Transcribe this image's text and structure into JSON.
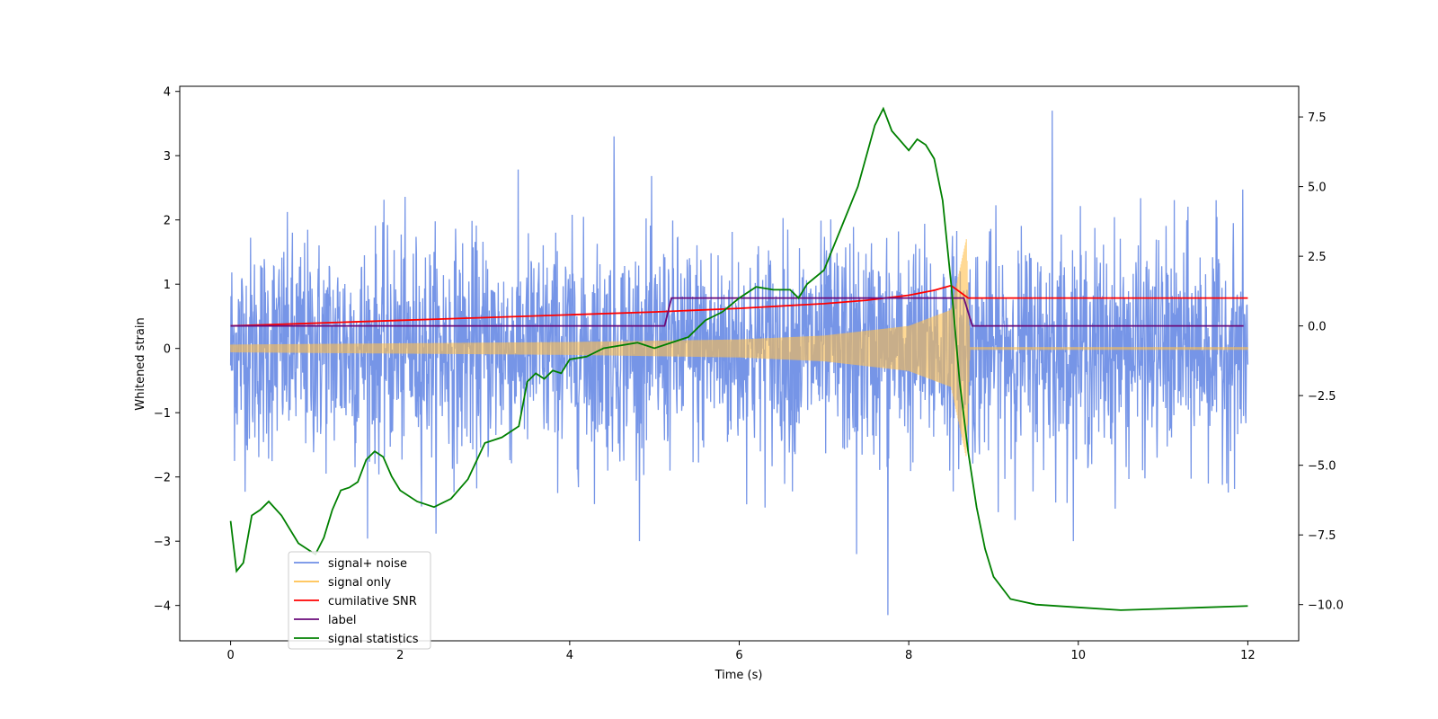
{
  "chart_data": {
    "type": "line",
    "xlabel": "Time (s)",
    "ylabel": "Whitened strain",
    "xlim": [
      -0.6,
      12.6
    ],
    "ylim": [
      -4.55,
      4.08
    ],
    "y2lim": [
      -11.3,
      8.6
    ],
    "x_ticks": [
      0,
      2,
      4,
      6,
      8,
      10,
      12
    ],
    "y_ticks": [
      4,
      3,
      2,
      1,
      0,
      -1,
      -2,
      -3,
      -4
    ],
    "y2_ticks": [
      7.5,
      5.0,
      2.5,
      0.0,
      -2.5,
      -5.0,
      -7.5,
      -10.0
    ],
    "x_tick_labels": [
      "0",
      "2",
      "4",
      "6",
      "8",
      "10",
      "12"
    ],
    "y_tick_labels": [
      "4",
      "3",
      "2",
      "1",
      "0",
      "−1",
      "−2",
      "−3",
      "−4"
    ],
    "y2_tick_labels": [
      "7.5",
      "5.0",
      "2.5",
      "0.0",
      "−2.5",
      "−5.0",
      "−7.5",
      "−10.0"
    ],
    "grid": false,
    "legend_position": "lower-left",
    "legend": [
      {
        "label": "signal+ noise",
        "color": "#6f8fe6"
      },
      {
        "label": "signal only",
        "color": "#ffc04d"
      },
      {
        "label": "cumilative SNR",
        "color": "#ff0000"
      },
      {
        "label": "label",
        "color": "#6a0a7a"
      },
      {
        "label": "signal statistics",
        "color": "#008000"
      }
    ],
    "series": [
      {
        "name": "signal+ noise",
        "axis": "left",
        "color": "#6f8fe6",
        "style": "noise",
        "x_range": [
          0,
          12
        ],
        "noise_sigma": 0.85,
        "approx_extremes": {
          "max": 3.7,
          "min": -4.15
        }
      },
      {
        "name": "signal only",
        "axis": "left",
        "color": "#ffc04d",
        "style": "chirp",
        "chirp_start": 0,
        "merger_time": 8.7,
        "envelope": [
          [
            0,
            0.06
          ],
          [
            2,
            0.08
          ],
          [
            4,
            0.1
          ],
          [
            6,
            0.14
          ],
          [
            7,
            0.2
          ],
          [
            8,
            0.35
          ],
          [
            8.5,
            0.6
          ],
          [
            8.68,
            1.7
          ],
          [
            8.72,
            0.02
          ],
          [
            12,
            0.02
          ]
        ]
      },
      {
        "name": "cumilative SNR",
        "axis": "right",
        "color": "#ff0000",
        "x": [
          0,
          1,
          2,
          3,
          4,
          5,
          6,
          7,
          7.5,
          8,
          8.3,
          8.5,
          8.7,
          8.72,
          9,
          10,
          11,
          12
        ],
        "y": [
          0.0,
          0.1,
          0.2,
          0.3,
          0.4,
          0.5,
          0.63,
          0.8,
          0.92,
          1.1,
          1.28,
          1.45,
          1.0,
          1.0,
          1.0,
          1.0,
          1.0,
          1.0
        ]
      },
      {
        "name": "label",
        "axis": "right",
        "color": "#6a0a7a",
        "x": [
          0,
          5.12,
          5.2,
          8.65,
          8.75,
          11.95
        ],
        "y": [
          0,
          0,
          1,
          1,
          0,
          0
        ]
      },
      {
        "name": "signal statistics",
        "axis": "right",
        "color": "#008000",
        "x": [
          0,
          0.07,
          0.15,
          0.25,
          0.35,
          0.45,
          0.6,
          0.8,
          1.0,
          1.1,
          1.2,
          1.3,
          1.4,
          1.5,
          1.6,
          1.7,
          1.8,
          1.9,
          2.0,
          2.2,
          2.4,
          2.6,
          2.8,
          3.0,
          3.2,
          3.4,
          3.5,
          3.6,
          3.7,
          3.8,
          3.9,
          4.0,
          4.2,
          4.4,
          4.6,
          4.8,
          5.0,
          5.2,
          5.4,
          5.6,
          5.8,
          6.0,
          6.2,
          6.4,
          6.6,
          6.7,
          6.8,
          7.0,
          7.2,
          7.4,
          7.6,
          7.7,
          7.8,
          8.0,
          8.1,
          8.2,
          8.3,
          8.4,
          8.5,
          8.6,
          8.7,
          8.8,
          8.9,
          9.0,
          9.2,
          9.5,
          10.0,
          10.5,
          11.0,
          11.5,
          12.0
        ],
        "y": [
          -7.0,
          -8.8,
          -8.5,
          -6.8,
          -6.6,
          -6.3,
          -6.8,
          -7.8,
          -8.2,
          -7.6,
          -6.6,
          -5.9,
          -5.8,
          -5.6,
          -4.8,
          -4.5,
          -4.7,
          -5.4,
          -5.9,
          -6.3,
          -6.5,
          -6.2,
          -5.5,
          -4.2,
          -4.0,
          -3.6,
          -2.0,
          -1.7,
          -1.9,
          -1.6,
          -1.7,
          -1.2,
          -1.1,
          -0.8,
          -0.7,
          -0.6,
          -0.8,
          -0.6,
          -0.4,
          0.2,
          0.5,
          1.0,
          1.4,
          1.3,
          1.3,
          1.0,
          1.5,
          2.0,
          3.5,
          5.0,
          7.2,
          7.8,
          7.0,
          6.3,
          6.7,
          6.5,
          6.0,
          4.5,
          1.5,
          -2.0,
          -4.5,
          -6.5,
          -8.0,
          -9.0,
          -9.8,
          -10.0,
          -10.1,
          -10.2,
          -10.15,
          -10.1,
          -10.05
        ]
      }
    ]
  }
}
